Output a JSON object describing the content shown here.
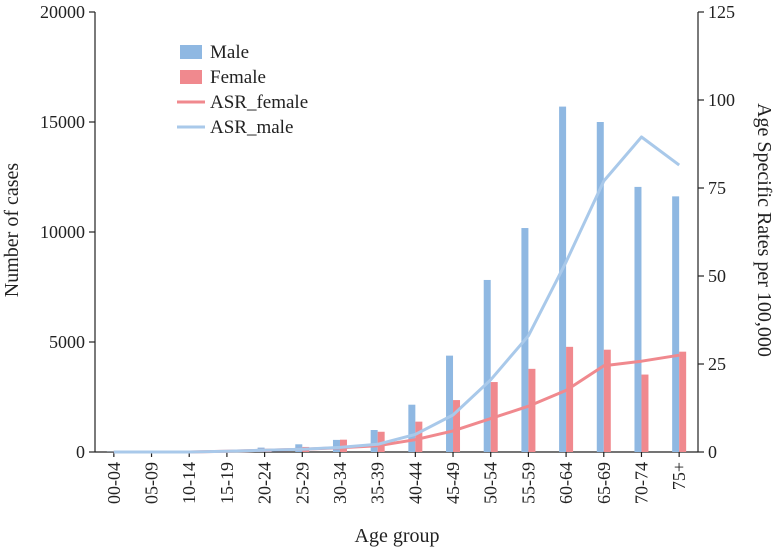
{
  "chart_data": {
    "type": "bar",
    "categories": [
      "00-04",
      "05-09",
      "10-14",
      "15-19",
      "20-24",
      "25-29",
      "30-34",
      "35-39",
      "40-44",
      "45-49",
      "50-54",
      "55-59",
      "60-64",
      "65-69",
      "70-74",
      "75+"
    ],
    "xlabel": "Age group",
    "ylabel_left": "Number of cases",
    "ylabel_right": "Age Specific Rates per 100,000",
    "ylim_left": [
      0,
      20000
    ],
    "yticks_left": [
      0,
      5000,
      10000,
      15000,
      20000
    ],
    "ylim_right": [
      0,
      125
    ],
    "yticks_right": [
      0,
      25,
      50,
      75,
      100,
      125
    ],
    "grid": false,
    "legend_position": "top-left",
    "bar_series": [
      {
        "name": "Male",
        "color": "#8fb8e2",
        "values": [
          10,
          15,
          25,
          60,
          200,
          350,
          550,
          1000,
          2150,
          4380,
          7820,
          10180,
          15700,
          15000,
          12050,
          11620
        ]
      },
      {
        "name": "Female",
        "color": "#f0898e",
        "values": [
          10,
          12,
          20,
          50,
          130,
          230,
          560,
          920,
          1380,
          2360,
          3180,
          3780,
          4780,
          4650,
          3520,
          4560
        ]
      }
    ],
    "line_series": [
      {
        "name": "ASR_female",
        "color": "#f0898e",
        "axis": "right",
        "values": [
          0,
          0,
          0,
          0.2,
          0.5,
          0.8,
          1.2,
          1.8,
          3.5,
          6,
          9.5,
          13,
          17.5,
          24.5,
          25.8,
          27.5
        ]
      },
      {
        "name": "ASR_male",
        "color": "#a9c9ea",
        "axis": "right",
        "values": [
          0,
          0,
          0,
          0.2,
          0.5,
          0.8,
          1.3,
          2.2,
          5,
          10.5,
          20.5,
          33,
          54,
          77,
          89.5,
          81.5
        ]
      }
    ],
    "legend_order": [
      "Male",
      "Female",
      "ASR_female",
      "ASR_male"
    ]
  }
}
